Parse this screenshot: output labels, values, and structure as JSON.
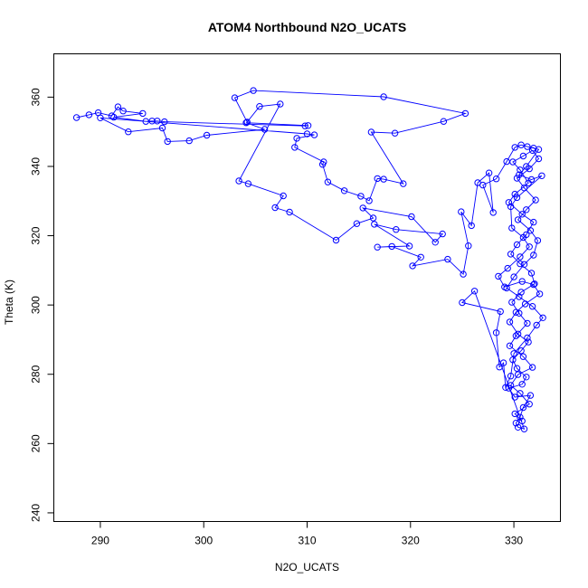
{
  "chart_data": {
    "type": "line",
    "title": "ATOM4 Northbound N2O_UCATS",
    "xlabel": "N2O_UCATS",
    "ylabel": "Theta (K)",
    "xlim": [
      285.5,
      334.5
    ],
    "ylim": [
      237.5,
      372.5
    ],
    "x_ticks": [
      290,
      300,
      310,
      320,
      330
    ],
    "y_ticks": [
      240,
      260,
      280,
      300,
      320,
      340,
      360
    ],
    "grid": false,
    "legend": "none",
    "colors": {
      "series": "#0000ff",
      "axis": "#000000"
    },
    "series": [
      {
        "marker": "open-circle",
        "points": [
          [
            287.7,
            354.1
          ],
          [
            288.9,
            354.9
          ],
          [
            289.8,
            355.5
          ],
          [
            291.1,
            354.6
          ],
          [
            291.7,
            357.2
          ],
          [
            292.2,
            356.0
          ],
          [
            294.1,
            355.3
          ],
          [
            291.3,
            354.2
          ],
          [
            294.4,
            353.0
          ],
          [
            295.0,
            353.1
          ],
          [
            295.5,
            353.1
          ],
          [
            296.2,
            352.9
          ],
          [
            309.8,
            351.7
          ],
          [
            310.1,
            351.8
          ],
          [
            304.1,
            352.6
          ],
          [
            305.9,
            350.7
          ],
          [
            300.3,
            349.0
          ],
          [
            298.6,
            347.4
          ],
          [
            296.5,
            347.2
          ],
          [
            296.0,
            351.1
          ],
          [
            292.7,
            350.0
          ],
          [
            290.0,
            354.0
          ],
          [
            310.0,
            349.4
          ],
          [
            310.7,
            349.1
          ],
          [
            309.0,
            348.1
          ],
          [
            308.8,
            345.5
          ],
          [
            311.6,
            341.3
          ],
          [
            311.5,
            340.6
          ],
          [
            312.0,
            335.5
          ],
          [
            313.6,
            333.0
          ],
          [
            315.2,
            331.4
          ],
          [
            316.0,
            330.1
          ],
          [
            316.8,
            336.5
          ],
          [
            317.4,
            336.3
          ],
          [
            319.3,
            335.0
          ],
          [
            316.2,
            349.9
          ],
          [
            318.5,
            349.6
          ],
          [
            323.2,
            353.0
          ],
          [
            325.3,
            355.3
          ],
          [
            317.4,
            360.1
          ],
          [
            304.8,
            361.9
          ],
          [
            303.0,
            359.8
          ],
          [
            304.2,
            352.8
          ],
          [
            305.4,
            357.3
          ],
          [
            307.4,
            358.0
          ],
          [
            303.4,
            335.8
          ],
          [
            304.3,
            335.0
          ],
          [
            307.7,
            331.5
          ],
          [
            306.9,
            328.1
          ],
          [
            308.3,
            326.8
          ],
          [
            312.8,
            318.7
          ],
          [
            314.8,
            323.5
          ],
          [
            316.4,
            325.1
          ],
          [
            315.4,
            328.0
          ],
          [
            320.1,
            325.5
          ],
          [
            322.4,
            318.1
          ],
          [
            323.1,
            320.5
          ],
          [
            318.6,
            321.8
          ],
          [
            316.5,
            323.3
          ],
          [
            319.9,
            317.0
          ],
          [
            316.8,
            316.7
          ],
          [
            318.2,
            316.9
          ],
          [
            321.0,
            313.8
          ],
          [
            320.2,
            311.3
          ],
          [
            323.6,
            313.2
          ],
          [
            325.1,
            308.9
          ],
          [
            325.6,
            317.1
          ],
          [
            324.9,
            326.9
          ],
          [
            325.9,
            322.9
          ],
          [
            326.5,
            335.3
          ],
          [
            327.6,
            338.1
          ],
          [
            328.0,
            326.7
          ],
          [
            327.0,
            334.6
          ],
          [
            328.3,
            336.4
          ],
          [
            329.3,
            341.4
          ],
          [
            330.1,
            345.5
          ],
          [
            330.7,
            346.2
          ],
          [
            331.3,
            345.7
          ],
          [
            331.9,
            345.3
          ],
          [
            332.4,
            344.9
          ],
          [
            331.2,
            340.0
          ],
          [
            330.5,
            337.6
          ],
          [
            331.7,
            336.2
          ],
          [
            332.7,
            337.3
          ],
          [
            330.3,
            331.0
          ],
          [
            329.7,
            328.4
          ],
          [
            329.8,
            322.2
          ],
          [
            330.9,
            319.5
          ],
          [
            331.5,
            316.8
          ],
          [
            330.6,
            313.9
          ],
          [
            329.4,
            310.6
          ],
          [
            328.5,
            308.3
          ],
          [
            329.1,
            305.2
          ],
          [
            330.8,
            306.8
          ],
          [
            331.9,
            305.9
          ],
          [
            332.5,
            303.2
          ],
          [
            331.1,
            300.3
          ],
          [
            330.2,
            297.9
          ],
          [
            329.6,
            295.1
          ],
          [
            330.4,
            291.6
          ],
          [
            331.4,
            289.3
          ],
          [
            330.7,
            286.8
          ],
          [
            329.9,
            284.2
          ],
          [
            330.3,
            281.7
          ],
          [
            331.2,
            279.2
          ],
          [
            330.8,
            277.1
          ],
          [
            329.5,
            276.0
          ],
          [
            330.1,
            273.4
          ],
          [
            331.6,
            273.9
          ],
          [
            330.9,
            270.4
          ],
          [
            330.6,
            267.6
          ],
          [
            330.2,
            265.9
          ],
          [
            330.4,
            264.7
          ],
          [
            331.0,
            264.2
          ],
          [
            326.2,
            304.0
          ],
          [
            325.0,
            300.7
          ],
          [
            328.7,
            298.1
          ],
          [
            328.3,
            292.0
          ],
          [
            328.6,
            282.1
          ],
          [
            329.0,
            283.3
          ],
          [
            329.2,
            276.2
          ],
          [
            329.7,
            279.5
          ],
          [
            330.0,
            286.0
          ],
          [
            331.3,
            290.5
          ],
          [
            332.2,
            294.2
          ],
          [
            332.8,
            296.3
          ],
          [
            331.8,
            299.6
          ],
          [
            330.5,
            302.4
          ],
          [
            329.3,
            304.9
          ],
          [
            330.0,
            308.1
          ],
          [
            331.0,
            311.7
          ],
          [
            331.9,
            314.4
          ],
          [
            332.3,
            318.6
          ],
          [
            331.6,
            321.5
          ],
          [
            330.4,
            324.6
          ],
          [
            331.2,
            327.5
          ],
          [
            332.1,
            330.3
          ],
          [
            331.0,
            333.8
          ],
          [
            330.3,
            336.6
          ],
          [
            331.5,
            339.3
          ],
          [
            332.4,
            342.2
          ],
          [
            331.8,
            344.6
          ],
          [
            330.9,
            343.0
          ],
          [
            329.9,
            341.3
          ],
          [
            330.6,
            339.0
          ],
          [
            331.4,
            335.2
          ],
          [
            330.1,
            332.0
          ],
          [
            329.5,
            329.6
          ],
          [
            330.8,
            326.2
          ],
          [
            331.9,
            323.9
          ],
          [
            331.2,
            320.3
          ],
          [
            330.3,
            317.4
          ],
          [
            329.7,
            314.7
          ],
          [
            330.6,
            311.9
          ],
          [
            331.7,
            309.2
          ],
          [
            332.0,
            306.1
          ],
          [
            330.7,
            303.7
          ],
          [
            329.8,
            300.8
          ],
          [
            330.5,
            297.6
          ],
          [
            331.3,
            294.7
          ],
          [
            330.2,
            291.1
          ],
          [
            329.6,
            288.2
          ],
          [
            330.9,
            285.1
          ],
          [
            331.8,
            282.0
          ],
          [
            330.4,
            279.9
          ],
          [
            329.7,
            276.8
          ],
          [
            330.6,
            274.5
          ],
          [
            331.5,
            271.4
          ],
          [
            330.1,
            268.6
          ],
          [
            330.8,
            266.5
          ]
        ]
      }
    ]
  }
}
